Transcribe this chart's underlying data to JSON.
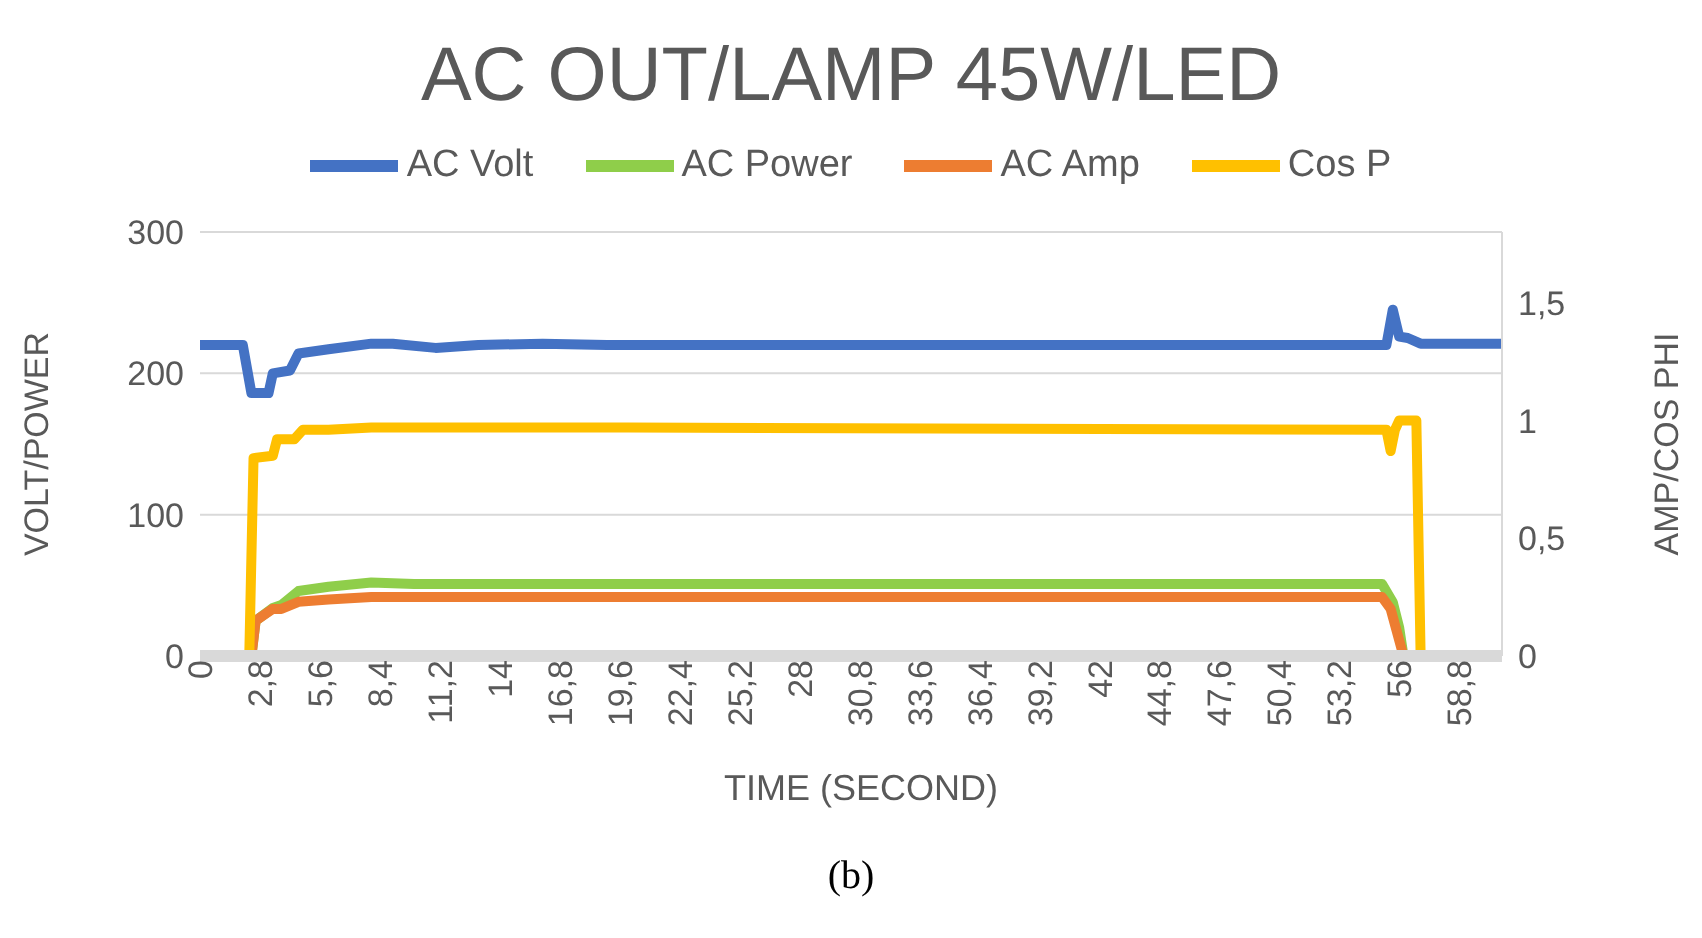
{
  "chart_data": {
    "type": "line",
    "title": "AC OUT/LAMP 45W/LED",
    "xlabel": "TIME (SECOND)",
    "ylabel": "VOLT/POWER",
    "y2label": "AMP/COS PHI",
    "annotations": [
      "(b)"
    ],
    "legend": "top",
    "grid": "y",
    "marker": "none",
    "line_style": "solid",
    "xlim": [
      0,
      60.8
    ],
    "xticks": [
      0,
      {
        "value": 2.8,
        "label": "2,8"
      },
      {
        "value": 5.6,
        "label": "5,6"
      },
      {
        "value": 8.4,
        "label": "8,4"
      },
      {
        "value": 11.2,
        "label": "11,2"
      },
      14,
      {
        "value": 16.8,
        "label": "16,8"
      },
      {
        "value": 19.6,
        "label": "19,6"
      },
      {
        "value": 22.4,
        "label": "22,4"
      },
      {
        "value": 25.2,
        "label": "25,2"
      },
      28,
      {
        "value": 30.8,
        "label": "30,8"
      },
      {
        "value": 33.6,
        "label": "33,6"
      },
      {
        "value": 36.4,
        "label": "36,4"
      },
      {
        "value": 39.2,
        "label": "39,2"
      },
      42,
      {
        "value": 44.8,
        "label": "44,8"
      },
      {
        "value": 47.6,
        "label": "47,6"
      },
      {
        "value": 50.4,
        "label": "50,4"
      },
      {
        "value": 53.2,
        "label": "53,2"
      },
      56,
      {
        "value": 58.8,
        "label": "58,8"
      }
    ],
    "ylim": [
      0,
      300
    ],
    "yticks": [
      0,
      100,
      200,
      300
    ],
    "y2lim": [
      0,
      1.8
    ],
    "y2ticks": [
      0,
      {
        "value": 0.5,
        "label": "0,5"
      },
      1,
      {
        "value": 1.5,
        "label": "1,5"
      }
    ],
    "series": [
      {
        "name": "AC Volt",
        "color": "#4472c4",
        "x": [
          0,
          2.0,
          2.4,
          3.2,
          3.4,
          4.2,
          4.6,
          6,
          8,
          9,
          11,
          13,
          16,
          19,
          55.4,
          55.7,
          56.0,
          56.4,
          57,
          60.8
        ],
        "values": [
          220,
          220,
          186,
          186,
          200,
          202,
          214,
          217,
          221,
          221,
          218,
          220,
          221,
          220,
          220,
          245,
          226,
          225,
          221,
          221
        ]
      },
      {
        "name": "AC Power",
        "color": "#8fce4a",
        "x": [
          0,
          2.4,
          2.6,
          3.4,
          3.8,
          4.6,
          6,
          8,
          10,
          20,
          55.2,
          55.7,
          56.0,
          56.2,
          60.8
        ],
        "values": [
          0,
          0,
          25,
          34,
          36,
          46,
          49,
          52,
          51,
          51,
          51,
          38,
          20,
          0,
          0
        ]
      },
      {
        "name": "AC Amp",
        "color": "#ed7d31",
        "axis": "y2",
        "x": [
          0,
          2.4,
          2.6,
          3.4,
          3.8,
          4.6,
          6,
          8,
          20,
          55.2,
          55.6,
          55.9,
          56.2,
          60.8
        ],
        "values": [
          0,
          0,
          0.15,
          0.2,
          0.2,
          0.23,
          0.24,
          0.25,
          0.25,
          0.25,
          0.2,
          0.1,
          0,
          0
        ]
      },
      {
        "name": "Cos P",
        "color": "#ffc000",
        "axis": "y2",
        "x": [
          0,
          2.3,
          2.5,
          3.4,
          3.6,
          4.4,
          4.8,
          6,
          8,
          20,
          55.4,
          55.6,
          55.8,
          56.0,
          56.8,
          57.0,
          60.8
        ],
        "values": [
          0,
          0,
          0.84,
          0.85,
          0.92,
          0.92,
          0.96,
          0.96,
          0.97,
          0.97,
          0.96,
          0.87,
          0.96,
          1.0,
          1.0,
          0,
          0
        ]
      }
    ]
  }
}
